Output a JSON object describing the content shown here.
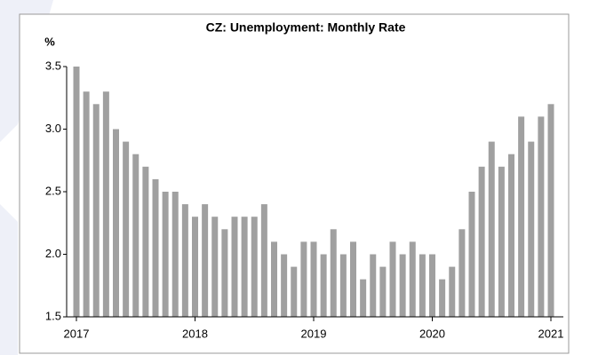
{
  "chart_data": {
    "type": "bar",
    "title": "CZ: Unemployment: Monthly Rate",
    "y_label": "%",
    "categories": [
      "2017",
      null,
      null,
      null,
      null,
      null,
      null,
      null,
      null,
      null,
      null,
      null,
      "2018",
      null,
      null,
      null,
      null,
      null,
      null,
      null,
      null,
      null,
      null,
      null,
      "2019",
      null,
      null,
      null,
      null,
      null,
      null,
      null,
      null,
      null,
      null,
      null,
      "2020",
      null,
      null,
      null,
      null,
      null,
      null,
      null,
      null,
      null,
      null,
      null,
      "2021"
    ],
    "values": [
      3.5,
      3.3,
      3.2,
      3.3,
      3.0,
      2.9,
      2.8,
      2.7,
      2.6,
      2.5,
      2.5,
      2.4,
      2.3,
      2.4,
      2.3,
      2.2,
      2.3,
      2.3,
      2.3,
      2.4,
      2.1,
      2.0,
      1.9,
      2.1,
      2.1,
      2.0,
      2.2,
      2.0,
      2.1,
      1.8,
      2.0,
      1.9,
      2.1,
      2.0,
      2.1,
      2.0,
      2.0,
      1.8,
      1.9,
      2.2,
      2.5,
      2.7,
      2.9,
      2.7,
      2.8,
      3.1,
      2.9,
      3.1,
      3.2
    ],
    "color": "#a0a0a0",
    "ylim": [
      1.5,
      3.5
    ],
    "yticks": [
      1.5,
      {
        "value": 2,
        "label": "2.0"
      },
      2.5,
      {
        "value": 3,
        "label": "3.0"
      },
      3.5
    ],
    "grid": false
  }
}
